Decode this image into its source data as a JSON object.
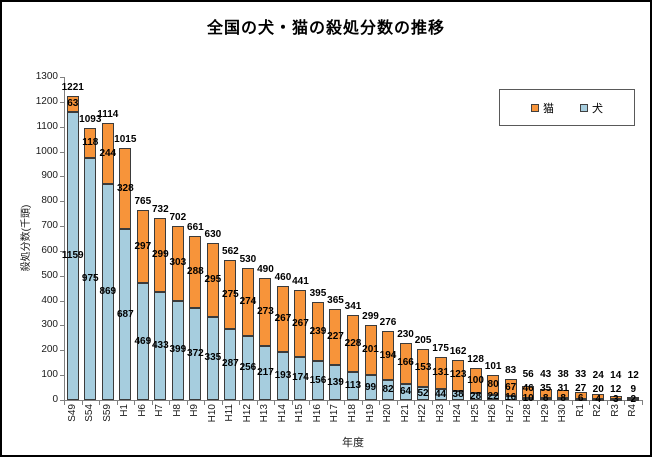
{
  "title": "全国の犬・猫の殺処分数の推移",
  "legend": {
    "items": [
      {
        "label": "猫",
        "color": "#F7943A"
      },
      {
        "label": "犬",
        "color": "#A6CDDE"
      }
    ]
  },
  "chart_data": {
    "type": "bar",
    "stacked": true,
    "title": "全国の犬・猫の殺処分数の推移",
    "xlabel": "年度",
    "ylabel": "殺処分数(千頭)",
    "ylim": [
      0,
      1300
    ],
    "ytick_step": 100,
    "grid": false,
    "legend_position": "top-right",
    "categories": [
      "S49",
      "S54",
      "S59",
      "H1",
      "H6",
      "H7",
      "H8",
      "H9",
      "H10",
      "H11",
      "H12",
      "H13",
      "H14",
      "H15",
      "H16",
      "H17",
      "H18",
      "H19",
      "H20",
      "H21",
      "H22",
      "H23",
      "H24",
      "H25",
      "H26",
      "H27",
      "H28",
      "H29",
      "H30",
      "R1",
      "R2",
      "R3",
      "R4"
    ],
    "series": [
      {
        "name": "猫",
        "color": "#F7943A",
        "values": [
          63,
          118,
          244,
          328,
          297,
          299,
          303,
          288,
          295,
          275,
          274,
          273,
          267,
          267,
          239,
          227,
          228,
          201,
          194,
          166,
          153,
          131,
          123,
          100,
          80,
          67,
          46,
          35,
          31,
          27,
          20,
          12,
          9
        ]
      },
      {
        "name": "犬",
        "color": "#A6CDDE",
        "values": [
          1159,
          975,
          869,
          687,
          469,
          433,
          399,
          372,
          335,
          287,
          256,
          217,
          193,
          174,
          156,
          139,
          113,
          99,
          82,
          64,
          52,
          44,
          38,
          28,
          22,
          16,
          10,
          8,
          8,
          6,
          4,
          3,
          2
        ]
      }
    ],
    "totals": [
      1221,
      1093,
      1114,
      1015,
      765,
      732,
      702,
      661,
      630,
      562,
      530,
      490,
      460,
      441,
      395,
      365,
      341,
      299,
      276,
      230,
      205,
      175,
      162,
      128,
      101,
      83,
      56,
      43,
      38,
      33,
      24,
      14,
      12
    ]
  }
}
